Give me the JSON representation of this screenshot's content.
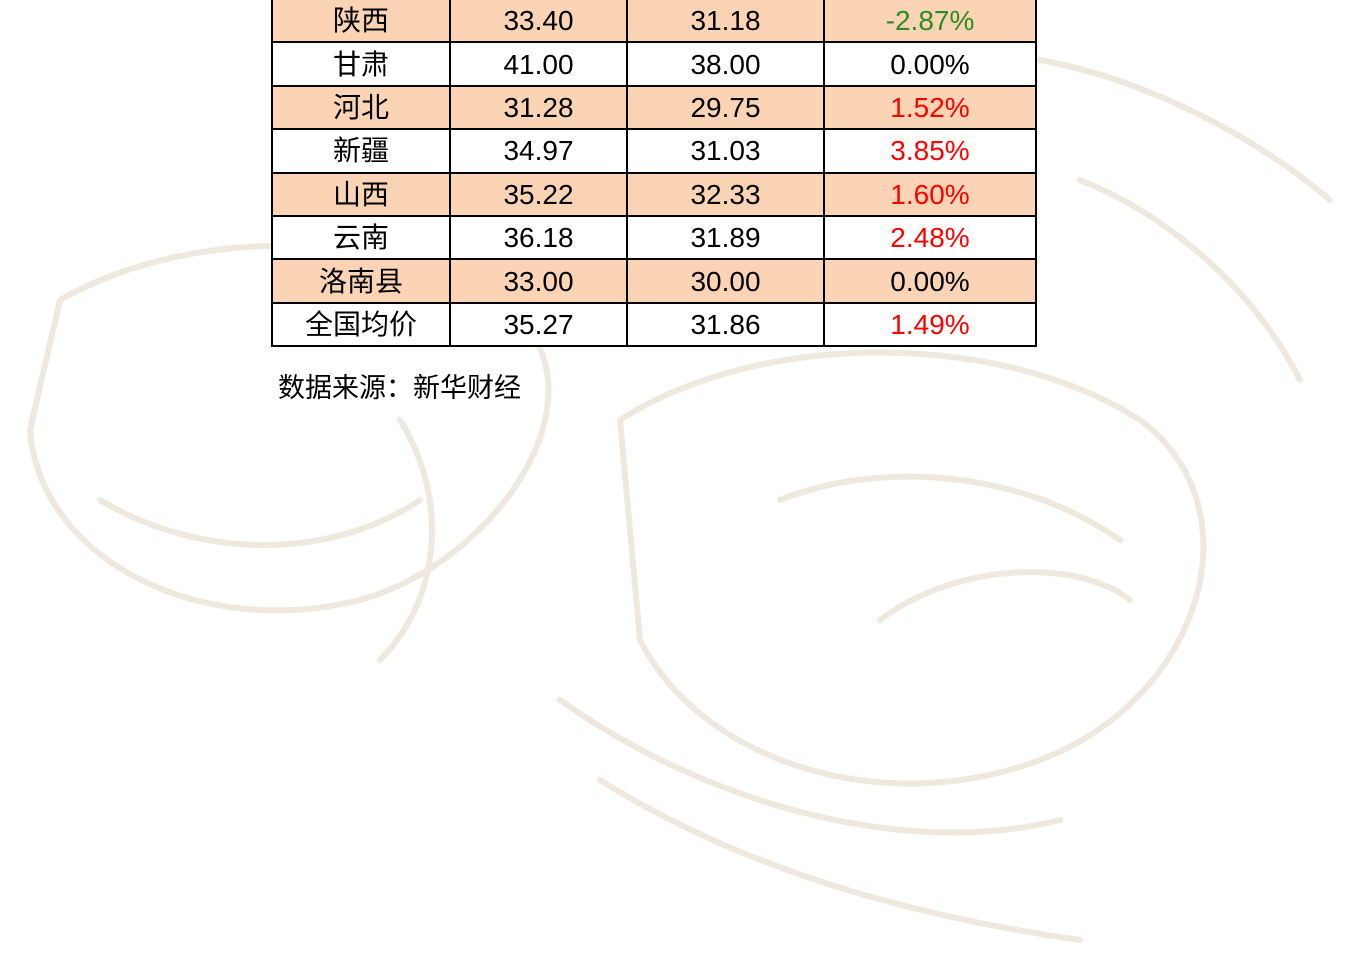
{
  "table": {
    "rows": [
      [
        "陕西",
        "33.40",
        "31.18",
        "-2.87%"
      ],
      [
        "甘肃",
        "41.00",
        "38.00",
        "0.00%"
      ],
      [
        "河北",
        "31.28",
        "29.75",
        "1.52%"
      ],
      [
        "新疆",
        "34.97",
        "31.03",
        "3.85%"
      ],
      [
        "山西",
        "35.22",
        "32.33",
        "1.60%"
      ],
      [
        "云南",
        "36.18",
        "31.89",
        "2.48%"
      ],
      [
        "洛南县",
        "33.00",
        "30.00",
        "0.00%"
      ],
      [
        "全国均价",
        "35.27",
        "31.86",
        "1.49%"
      ]
    ],
    "change_colors": [
      "#2e8b22",
      "#000000",
      "#ff0000",
      "#ff0000",
      "#ff0000",
      "#ff0000",
      "#000000",
      "#ff0000"
    ],
    "row_fills": [
      "#fad4b4",
      "#ffffff",
      "#fad4b4",
      "#ffffff",
      "#fad4b4",
      "#ffffff",
      "#fad4b4",
      "#ffffff"
    ]
  },
  "source": "数据来源：新华财经"
}
